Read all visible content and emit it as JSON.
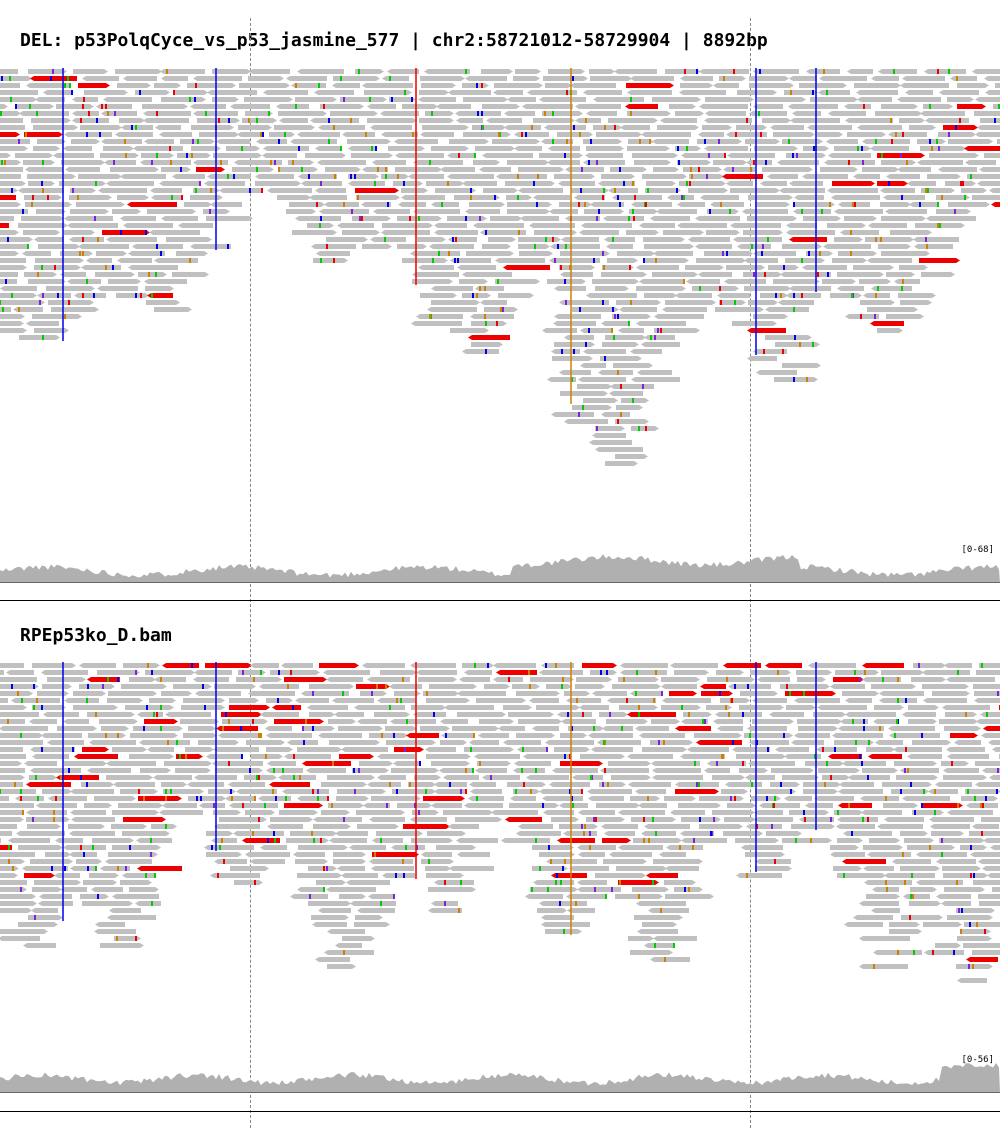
{
  "header": {
    "title": "DEL: p53PolqCyce_vs_p53_jasmine_577 | chr2:58721012-58729904 | 8892bp"
  },
  "tracks": [
    {
      "name": "",
      "coverage_scale": "[0-68]"
    },
    {
      "name": "RPEp53ko_D.bam",
      "coverage_scale": "[0-56]"
    }
  ],
  "colors": {
    "read": "#c0c0c0",
    "coverage": "#b0b0b0",
    "discordant": "#ee0000",
    "mismatch_a": "#00cc00",
    "mismatch_c": "#0000ee",
    "mismatch_g": "#d08000",
    "mismatch_t": "#ee0000",
    "insertion": "#8020e0",
    "guide": "#888888"
  }
}
